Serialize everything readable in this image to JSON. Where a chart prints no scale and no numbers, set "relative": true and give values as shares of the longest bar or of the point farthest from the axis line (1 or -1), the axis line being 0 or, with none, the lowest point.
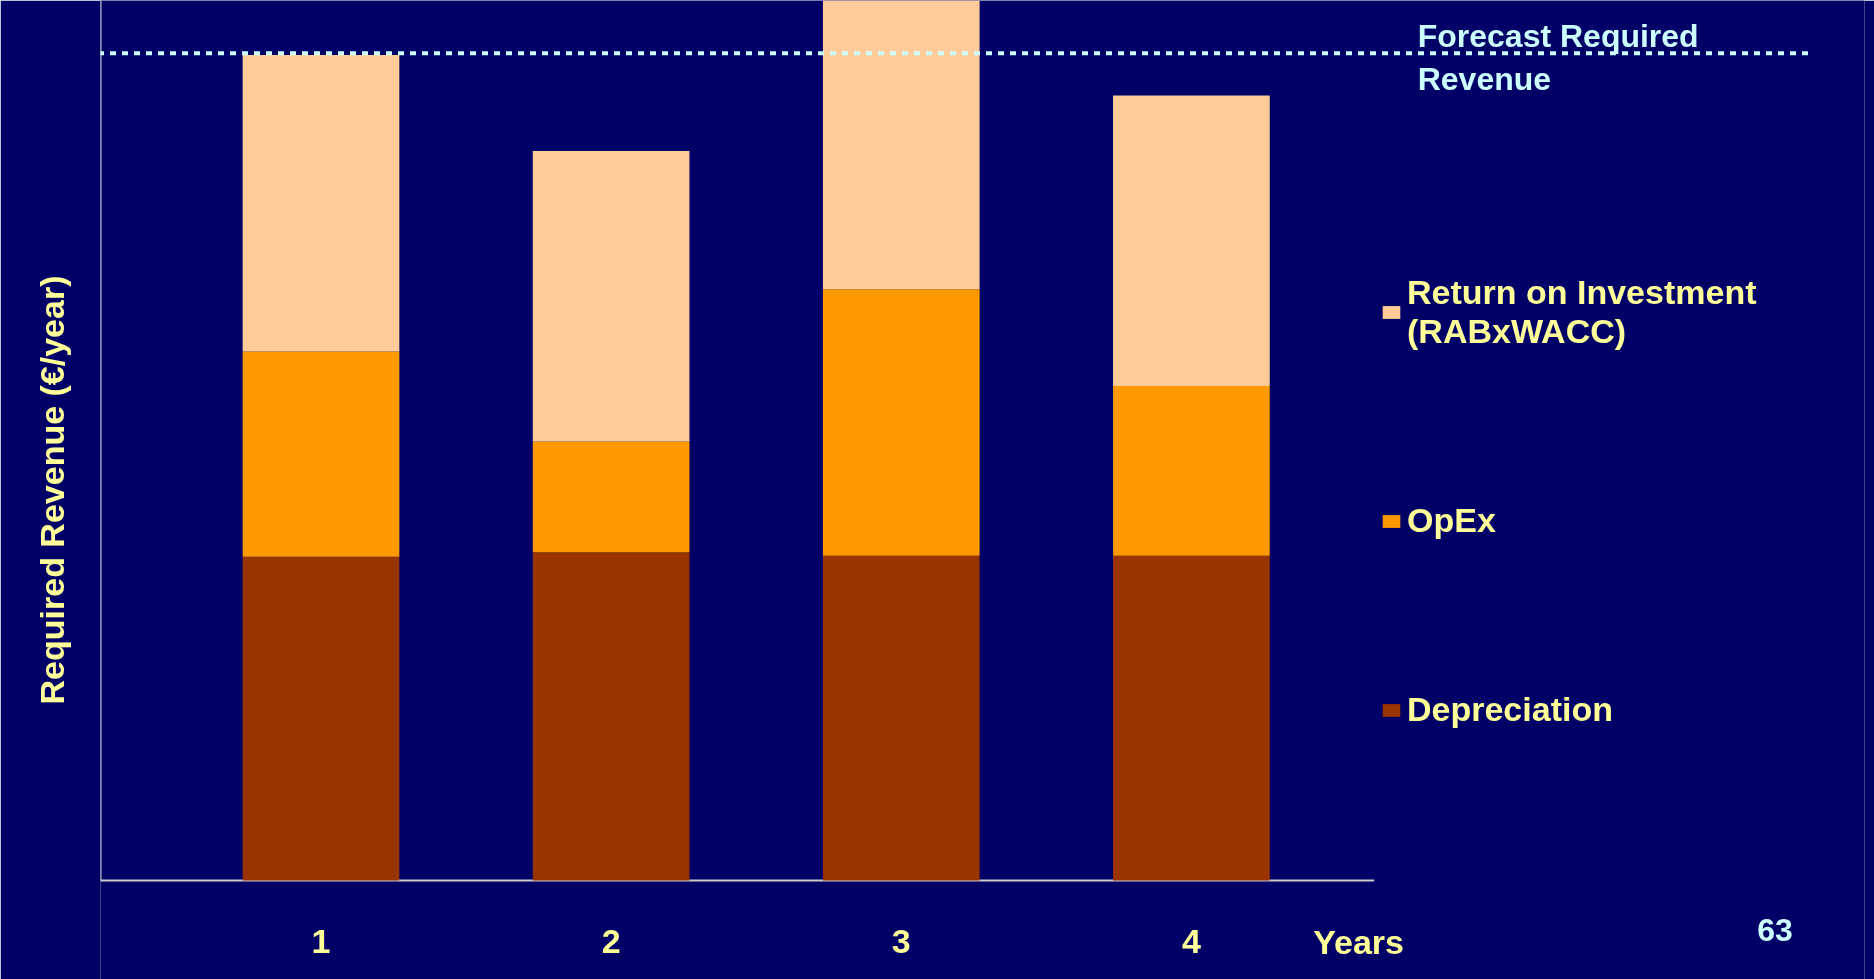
{
  "chart_data": {
    "type": "bar",
    "stacked": true,
    "relative": true,
    "categories": [
      "1",
      "2",
      "3",
      "4"
    ],
    "ylabel": "Required Revenue (€/year)",
    "xlabel": "Years",
    "series": [
      {
        "name": "Depreciation",
        "color": "#993300",
        "values": [
          0.368,
          0.373,
          0.369,
          0.369
        ]
      },
      {
        "name": "OpEx",
        "color": "#ff9900",
        "values": [
          0.233,
          0.126,
          0.303,
          0.193
        ]
      },
      {
        "name": "Return on Investment (RABxWACC)",
        "color": "#ffcc99",
        "values": [
          0.337,
          0.33,
          0.328,
          0.33
        ]
      }
    ],
    "ref_lines": [
      {
        "axis": "y",
        "value": 0.94,
        "label": "Forecast Required Revenue",
        "color": "#ccffff",
        "line_style": "dashed"
      }
    ],
    "annotations": [
      "63"
    ],
    "legend": "right",
    "grid": false
  }
}
